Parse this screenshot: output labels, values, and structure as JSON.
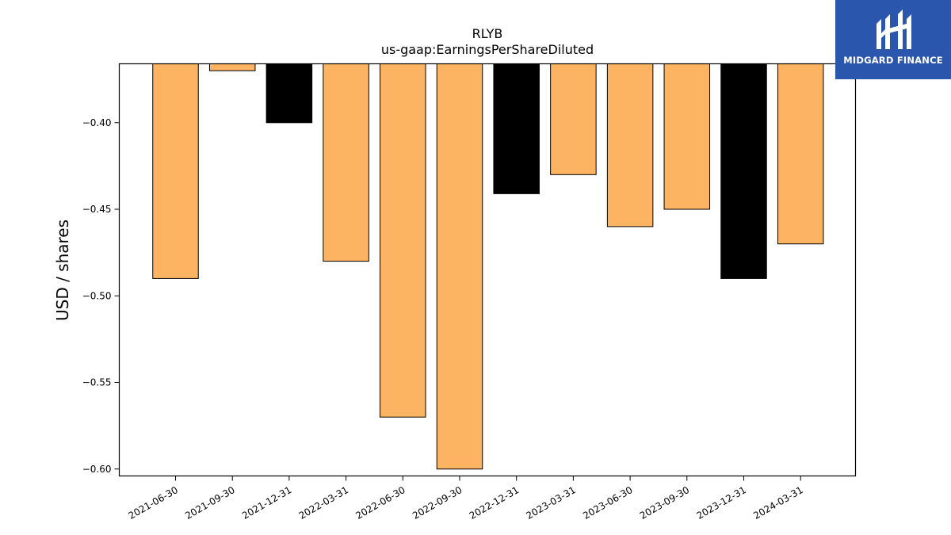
{
  "chart_data": {
    "type": "bar",
    "title": "RLYB",
    "subtitle": "us-gaap:EarningsPerShareDiluted",
    "xlabel": "",
    "ylabel": "USD / shares",
    "categories": [
      "2021-06-30",
      "2021-09-30",
      "2021-12-31",
      "2022-03-31",
      "2022-06-30",
      "2022-09-30",
      "2022-12-31",
      "2023-03-31",
      "2023-06-30",
      "2023-09-30",
      "2023-12-31",
      "2024-03-31"
    ],
    "values": [
      -0.49,
      -0.37,
      -0.4,
      -0.48,
      -0.57,
      -0.6,
      -0.441,
      -0.43,
      -0.46,
      -0.45,
      -0.49,
      -0.47
    ],
    "bar_colors": [
      "#fdb462",
      "#fdb462",
      "#000000",
      "#fdb462",
      "#fdb462",
      "#fdb462",
      "#000000",
      "#fdb462",
      "#fdb462",
      "#fdb462",
      "#000000",
      "#fdb462"
    ],
    "ylim": [
      -0.604,
      -0.366
    ],
    "yticks": [
      -0.4,
      -0.45,
      -0.5,
      -0.55,
      -0.6
    ],
    "ytick_labels": [
      "−0.40",
      "−0.45",
      "−0.50",
      "−0.55",
      "−0.60"
    ],
    "grid": false,
    "legend": "none"
  },
  "brand": {
    "name": "MIDGARD FINANCE",
    "background": "#2a57ad",
    "icon": "midgard-logo-icon"
  }
}
